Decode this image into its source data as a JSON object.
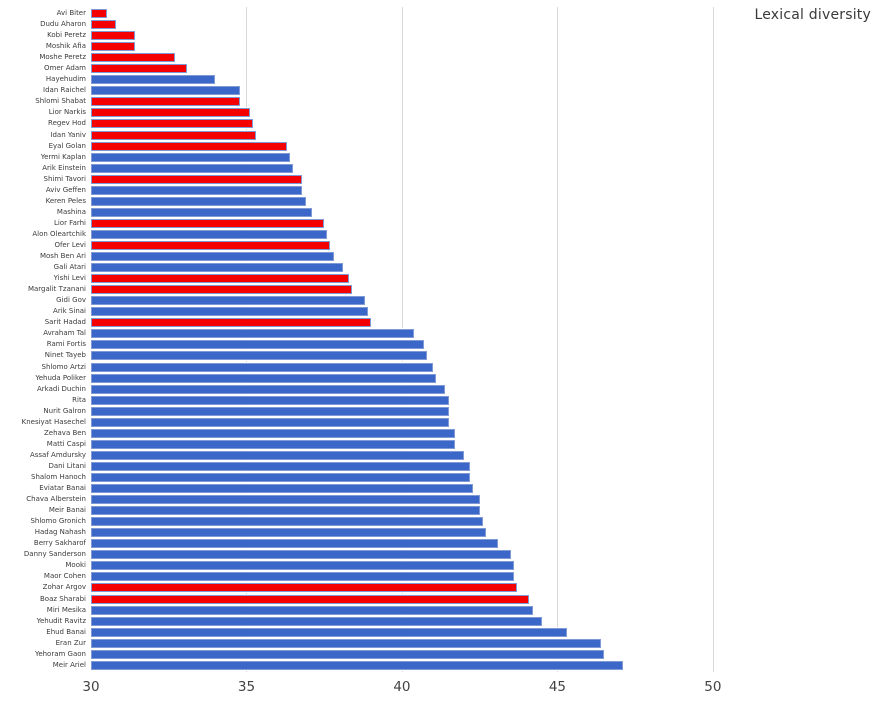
{
  "title": "Lexical diversity",
  "colors": {
    "blue": "#3a67c8",
    "red": "#f40000",
    "bar_edge": "#7f9ad4",
    "gridline": "#d8d8d8",
    "tick_label": "#434343",
    "category_label": "#3b3b3b",
    "title_text": "#3a3a3a",
    "background": "#ffffff"
  },
  "chart_data": {
    "type": "bar",
    "orientation": "horizontal",
    "title": "Lexical diversity",
    "xlabel": "",
    "ylabel": "",
    "xlim": [
      30,
      55.6
    ],
    "xticks": [
      30,
      35,
      40,
      45,
      50
    ],
    "grid": "vertical gridlines at 35, 40, 45, 50",
    "legend": "none",
    "series": [
      {
        "name": "Avi Biter",
        "value": 30.5,
        "color": "red"
      },
      {
        "name": "Dudu Aharon",
        "value": 30.8,
        "color": "red"
      },
      {
        "name": "Kobi Peretz",
        "value": 31.4,
        "color": "red"
      },
      {
        "name": "Moshik Afia",
        "value": 31.4,
        "color": "red"
      },
      {
        "name": "Moshe Peretz",
        "value": 32.7,
        "color": "red"
      },
      {
        "name": "Omer Adam",
        "value": 33.1,
        "color": "red"
      },
      {
        "name": "Hayehudim",
        "value": 34.0,
        "color": "blue"
      },
      {
        "name": "Idan Raichel",
        "value": 34.8,
        "color": "blue"
      },
      {
        "name": "Shlomi Shabat",
        "value": 34.8,
        "color": "red"
      },
      {
        "name": "Lior Narkis",
        "value": 35.1,
        "color": "red"
      },
      {
        "name": "Regev Hod",
        "value": 35.2,
        "color": "red"
      },
      {
        "name": "Idan Yaniv",
        "value": 35.3,
        "color": "red"
      },
      {
        "name": "Eyal Golan",
        "value": 36.3,
        "color": "red"
      },
      {
        "name": "Yermi Kaplan",
        "value": 36.4,
        "color": "blue"
      },
      {
        "name": "Arik Einstein",
        "value": 36.5,
        "color": "blue"
      },
      {
        "name": "Shimi Tavori",
        "value": 36.8,
        "color": "red"
      },
      {
        "name": "Aviv Geffen",
        "value": 36.8,
        "color": "blue"
      },
      {
        "name": "Keren Peles",
        "value": 36.9,
        "color": "blue"
      },
      {
        "name": "Mashina",
        "value": 37.1,
        "color": "blue"
      },
      {
        "name": "Lior Farhi",
        "value": 37.5,
        "color": "red"
      },
      {
        "name": "Alon Oleartchik",
        "value": 37.6,
        "color": "blue"
      },
      {
        "name": "Ofer Levi",
        "value": 37.7,
        "color": "red"
      },
      {
        "name": "Mosh Ben Ari",
        "value": 37.8,
        "color": "blue"
      },
      {
        "name": "Gali Atari",
        "value": 38.1,
        "color": "blue"
      },
      {
        "name": "Yishi Levi",
        "value": 38.3,
        "color": "red"
      },
      {
        "name": "Margalit Tzanani",
        "value": 38.4,
        "color": "red"
      },
      {
        "name": "Gidi Gov",
        "value": 38.8,
        "color": "blue"
      },
      {
        "name": "Arik Sinai",
        "value": 38.9,
        "color": "blue"
      },
      {
        "name": "Sarit Hadad",
        "value": 39.0,
        "color": "red"
      },
      {
        "name": "Avraham Tal",
        "value": 40.4,
        "color": "blue"
      },
      {
        "name": "Rami Fortis",
        "value": 40.7,
        "color": "blue"
      },
      {
        "name": "Ninet Tayeb",
        "value": 40.8,
        "color": "blue"
      },
      {
        "name": "Shlomo Artzi",
        "value": 41.0,
        "color": "blue"
      },
      {
        "name": "Yehuda Poliker",
        "value": 41.1,
        "color": "blue"
      },
      {
        "name": "Arkadi Duchin",
        "value": 41.4,
        "color": "blue"
      },
      {
        "name": "Rita",
        "value": 41.5,
        "color": "blue"
      },
      {
        "name": "Nurit Galron",
        "value": 41.5,
        "color": "blue"
      },
      {
        "name": "Knesiyat Hasechel",
        "value": 41.5,
        "color": "blue"
      },
      {
        "name": "Zehava Ben",
        "value": 41.7,
        "color": "blue"
      },
      {
        "name": "Matti Caspi",
        "value": 41.7,
        "color": "blue"
      },
      {
        "name": "Assaf Amdursky",
        "value": 42.0,
        "color": "blue"
      },
      {
        "name": "Dani Litani",
        "value": 42.2,
        "color": "blue"
      },
      {
        "name": "Shalom Hanoch",
        "value": 42.2,
        "color": "blue"
      },
      {
        "name": "Eviatar Banai",
        "value": 42.3,
        "color": "blue"
      },
      {
        "name": "Chava Alberstein",
        "value": 42.5,
        "color": "blue"
      },
      {
        "name": "Meir Banai",
        "value": 42.5,
        "color": "blue"
      },
      {
        "name": "Shlomo Gronich",
        "value": 42.6,
        "color": "blue"
      },
      {
        "name": "Hadag Nahash",
        "value": 42.7,
        "color": "blue"
      },
      {
        "name": "Berry Sakharof",
        "value": 43.1,
        "color": "blue"
      },
      {
        "name": "Danny Sanderson",
        "value": 43.5,
        "color": "blue"
      },
      {
        "name": "Mooki",
        "value": 43.6,
        "color": "blue"
      },
      {
        "name": "Maor Cohen",
        "value": 43.6,
        "color": "blue"
      },
      {
        "name": "Zohar Argov",
        "value": 43.7,
        "color": "red"
      },
      {
        "name": "Boaz Sharabi",
        "value": 44.1,
        "color": "red"
      },
      {
        "name": "Miri Mesika",
        "value": 44.2,
        "color": "blue"
      },
      {
        "name": "Yehudit Ravitz",
        "value": 44.5,
        "color": "blue"
      },
      {
        "name": "Ehud Banai",
        "value": 45.3,
        "color": "blue"
      },
      {
        "name": "Eran Zur",
        "value": 46.4,
        "color": "blue"
      },
      {
        "name": "Yehoram Gaon",
        "value": 46.5,
        "color": "blue"
      },
      {
        "name": "Meir Ariel",
        "value": 47.1,
        "color": "blue"
      }
    ]
  }
}
